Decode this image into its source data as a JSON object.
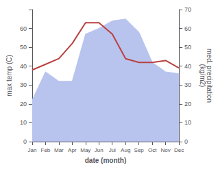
{
  "chart_data": {
    "type": "line",
    "xlabel": "date (month)",
    "ylabel": "max temp (C)",
    "y2label": "med. precipitation\n(kg/m2)",
    "categories": [
      "Jan",
      "Feb",
      "Mar",
      "Apr",
      "May",
      "Jun",
      "Jul",
      "Aug",
      "Sep",
      "Oct",
      "Nov",
      "Dec"
    ],
    "series": [
      {
        "type": "area",
        "axis": "y2",
        "color": "#b8c4ee",
        "values": [
          22,
          37,
          32,
          32,
          57,
          60,
          64,
          65,
          58,
          42,
          37,
          36
        ]
      },
      {
        "type": "line",
        "color": "#b94040",
        "values": [
          38,
          41,
          44,
          52,
          63,
          63,
          57,
          44,
          42,
          42,
          43,
          39
        ]
      }
    ],
    "ylim": [
      0,
      70
    ],
    "yticks": [
      0,
      10,
      20,
      30,
      40,
      50,
      60
    ],
    "y2lim": [
      0,
      70
    ],
    "y2ticks": [
      0,
      10,
      20,
      30,
      40,
      50,
      60,
      70
    ],
    "grid": false
  }
}
